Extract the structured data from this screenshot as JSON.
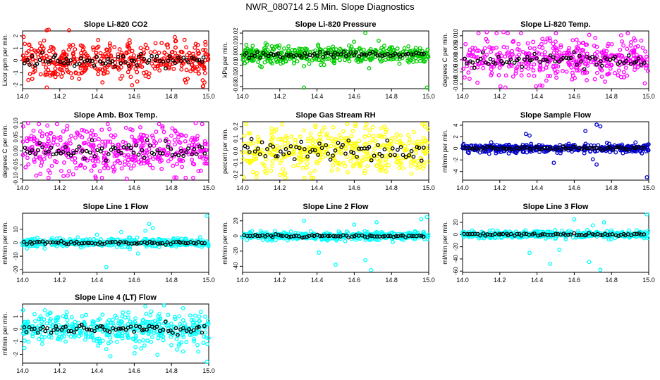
{
  "page": {
    "title": "NWR_080714  2.5 Min. Slope Diagnostics"
  },
  "chart_data": [
    {
      "type": "scatter",
      "title": "Slope Li-820 CO2",
      "ylabel": "Licor ppm per min.",
      "xlim": [
        14.0,
        15.0
      ],
      "ylim": [
        -2.3,
        2.4
      ],
      "x_ticks": [
        "14.0",
        "14.2",
        "14.4",
        "14.6",
        "14.8",
        "15.0"
      ],
      "y_ticks": [
        "-2",
        "-1",
        "0",
        "1",
        "2"
      ],
      "color": "#ff0000",
      "spread": 0.75,
      "outliers": [
        [
          14.13,
          2.45
        ],
        [
          14.14,
          2.5
        ],
        [
          14.25,
          2.45
        ],
        [
          14.13,
          -2.2
        ],
        [
          14.97,
          -2.1
        ]
      ]
    },
    {
      "type": "scatter",
      "title": "Slope Li-820 Pressure",
      "ylabel": "kPa per min.",
      "xlim": [
        14.0,
        15.0
      ],
      "ylim": [
        -0.032,
        0.022
      ],
      "x_ticks": [
        "14.0",
        "14.2",
        "14.4",
        "14.6",
        "14.8",
        "15.0"
      ],
      "y_ticks": [
        "-0.03",
        "-0.02",
        "-0.01",
        "0.00",
        "0.01",
        "0.02"
      ],
      "color": "#00cc00",
      "spread": 0.004,
      "outliers": [
        [
          14.66,
          0.02
        ],
        [
          14.33,
          -0.031
        ],
        [
          14.99,
          -0.031
        ],
        [
          14.68,
          -0.013
        ],
        [
          14.02,
          0.009
        ]
      ]
    },
    {
      "type": "scatter",
      "title": "Slope Li-820 Temp.",
      "ylabel": "degrees C per min.",
      "xlim": [
        14.0,
        15.0
      ],
      "ylim": [
        -0.012,
        0.012
      ],
      "x_ticks": [
        "14.0",
        "14.2",
        "14.4",
        "14.6",
        "14.8",
        "15.0"
      ],
      "y_ticks": [
        "-0.010",
        "-0.005",
        "0.000",
        "0.005",
        "0.010"
      ],
      "color": "#ff00ff",
      "spread": 0.004,
      "outliers": [
        [
          14.22,
          0.0115
        ],
        [
          14.13,
          0.0115
        ],
        [
          14.23,
          -0.0115
        ],
        [
          14.08,
          -0.0095
        ],
        [
          14.96,
          0.008
        ]
      ]
    },
    {
      "type": "scatter",
      "title": "Slope Amb. Box Temp.",
      "ylabel": "degrees C per min.",
      "xlim": [
        14.0,
        15.0
      ],
      "ylim": [
        -0.105,
        0.105
      ],
      "x_ticks": [
        "14.0",
        "14.2",
        "14.4",
        "14.6",
        "14.8",
        "15.0"
      ],
      "y_ticks": [
        "-0.10",
        "-0.05",
        "0.00",
        "0.05",
        "0.10"
      ],
      "color": "#ff00ff",
      "spread": 0.04,
      "outliers": [
        [
          14.03,
          0.1
        ],
        [
          14.24,
          0.09
        ],
        [
          14.56,
          -0.1
        ],
        [
          14.93,
          0.1
        ],
        [
          14.22,
          -0.09
        ]
      ]
    },
    {
      "type": "scatter",
      "title": "Slope Gas Stream RH",
      "ylabel": "percent per min.",
      "xlim": [
        14.0,
        15.0
      ],
      "ylim": [
        -0.24,
        0.24
      ],
      "x_ticks": [
        "14.0",
        "14.2",
        "14.4",
        "14.6",
        "14.8",
        "15.0"
      ],
      "y_ticks": [
        "-0.2",
        "-0.1",
        "0.0",
        "0.1",
        "0.2"
      ],
      "color": "#ffff00",
      "spread": 0.1,
      "outliers": [
        [
          14.02,
          0.22
        ],
        [
          14.98,
          0.2
        ],
        [
          14.23,
          -0.22
        ],
        [
          14.66,
          0.19
        ]
      ]
    },
    {
      "type": "scatter",
      "title": "Slope Sample Flow",
      "ylabel": "ml/min per min.",
      "xlim": [
        14.0,
        15.0
      ],
      "ylim": [
        -5.5,
        4.6
      ],
      "x_ticks": [
        "14.0",
        "14.2",
        "14.4",
        "14.6",
        "14.8",
        "15.0"
      ],
      "y_ticks": [
        "-4",
        "-2",
        "0",
        "2",
        "4"
      ],
      "color": "#0000cc",
      "spread": 0.35,
      "outliers": [
        [
          14.72,
          4.1
        ],
        [
          14.74,
          3.8
        ],
        [
          14.66,
          3.0
        ],
        [
          14.34,
          2.5
        ],
        [
          14.36,
          2.2
        ],
        [
          14.49,
          -2.5
        ],
        [
          14.72,
          -2.8
        ],
        [
          14.99,
          -5.0
        ],
        [
          14.7,
          -1.9
        ]
      ]
    },
    {
      "type": "scatter",
      "title": "Slope Line 1 Flow",
      "ylabel": "ml/min per min.",
      "xlim": [
        14.0,
        15.0
      ],
      "ylim": [
        -22,
        22
      ],
      "x_ticks": [
        "14.0",
        "14.2",
        "14.4",
        "14.6",
        "14.8",
        "15.0"
      ],
      "y_ticks": [
        "-20",
        "-10",
        "0",
        "10"
      ],
      "color": "#00ffff",
      "spread": 1.5,
      "outliers": [
        [
          14.99,
          20
        ],
        [
          14.68,
          14
        ],
        [
          14.7,
          11
        ],
        [
          14.45,
          -18
        ],
        [
          14.53,
          8
        ],
        [
          14.4,
          6
        ],
        [
          14.62,
          -8
        ],
        [
          14.66,
          9
        ]
      ]
    },
    {
      "type": "scatter",
      "title": "Slope Line 2 Flow",
      "ylabel": "ml/min per min.",
      "xlim": [
        14.0,
        15.0
      ],
      "ylim": [
        -48,
        30
      ],
      "x_ticks": [
        "14.0",
        "14.2",
        "14.4",
        "14.6",
        "14.8",
        "15.0"
      ],
      "y_ticks": [
        "-40",
        "-20",
        "0",
        "20"
      ],
      "color": "#00ffff",
      "spread": 2.5,
      "outliers": [
        [
          14.99,
          25
        ],
        [
          14.41,
          -22
        ],
        [
          14.5,
          -38
        ],
        [
          14.69,
          -45
        ],
        [
          14.66,
          -32
        ],
        [
          14.6,
          15
        ],
        [
          14.72,
          18
        ],
        [
          14.33,
          20
        ],
        [
          14.96,
          22
        ]
      ]
    },
    {
      "type": "scatter",
      "title": "Slope Line 3 Flow",
      "ylabel": "ml/min per min.",
      "xlim": [
        14.0,
        15.0
      ],
      "ylim": [
        -62,
        35
      ],
      "x_ticks": [
        "14.0",
        "14.2",
        "14.4",
        "14.6",
        "14.8",
        "15.0"
      ],
      "y_ticks": [
        "-60",
        "-40",
        "-20",
        "0",
        "20"
      ],
      "color": "#00ffff",
      "spread": 3,
      "outliers": [
        [
          14.99,
          33
        ],
        [
          14.74,
          -58
        ],
        [
          14.68,
          -45
        ],
        [
          14.36,
          -30
        ],
        [
          14.6,
          25
        ],
        [
          14.76,
          20
        ],
        [
          14.47,
          -48
        ],
        [
          14.7,
          15
        ],
        [
          14.52,
          -25
        ]
      ]
    },
    {
      "type": "scatter",
      "title": "Slope Line 4 (LT) Flow",
      "ylabel": "ml/min per min.",
      "xlim": [
        14.0,
        15.0
      ],
      "ylim": [
        -2.7,
        2.0
      ],
      "x_ticks": [
        "14.0",
        "14.2",
        "14.4",
        "14.6",
        "14.8",
        "15.0"
      ],
      "y_ticks": [
        "-2",
        "-1",
        "0",
        "1"
      ],
      "color": "#00ffff",
      "spread": 0.6,
      "outliers": [
        [
          14.01,
          -1.5
        ],
        [
          14.99,
          -2.6
        ],
        [
          14.76,
          1.9
        ],
        [
          14.12,
          1.5
        ],
        [
          14.45,
          -1.6
        ],
        [
          14.84,
          -1.3
        ]
      ]
    }
  ]
}
